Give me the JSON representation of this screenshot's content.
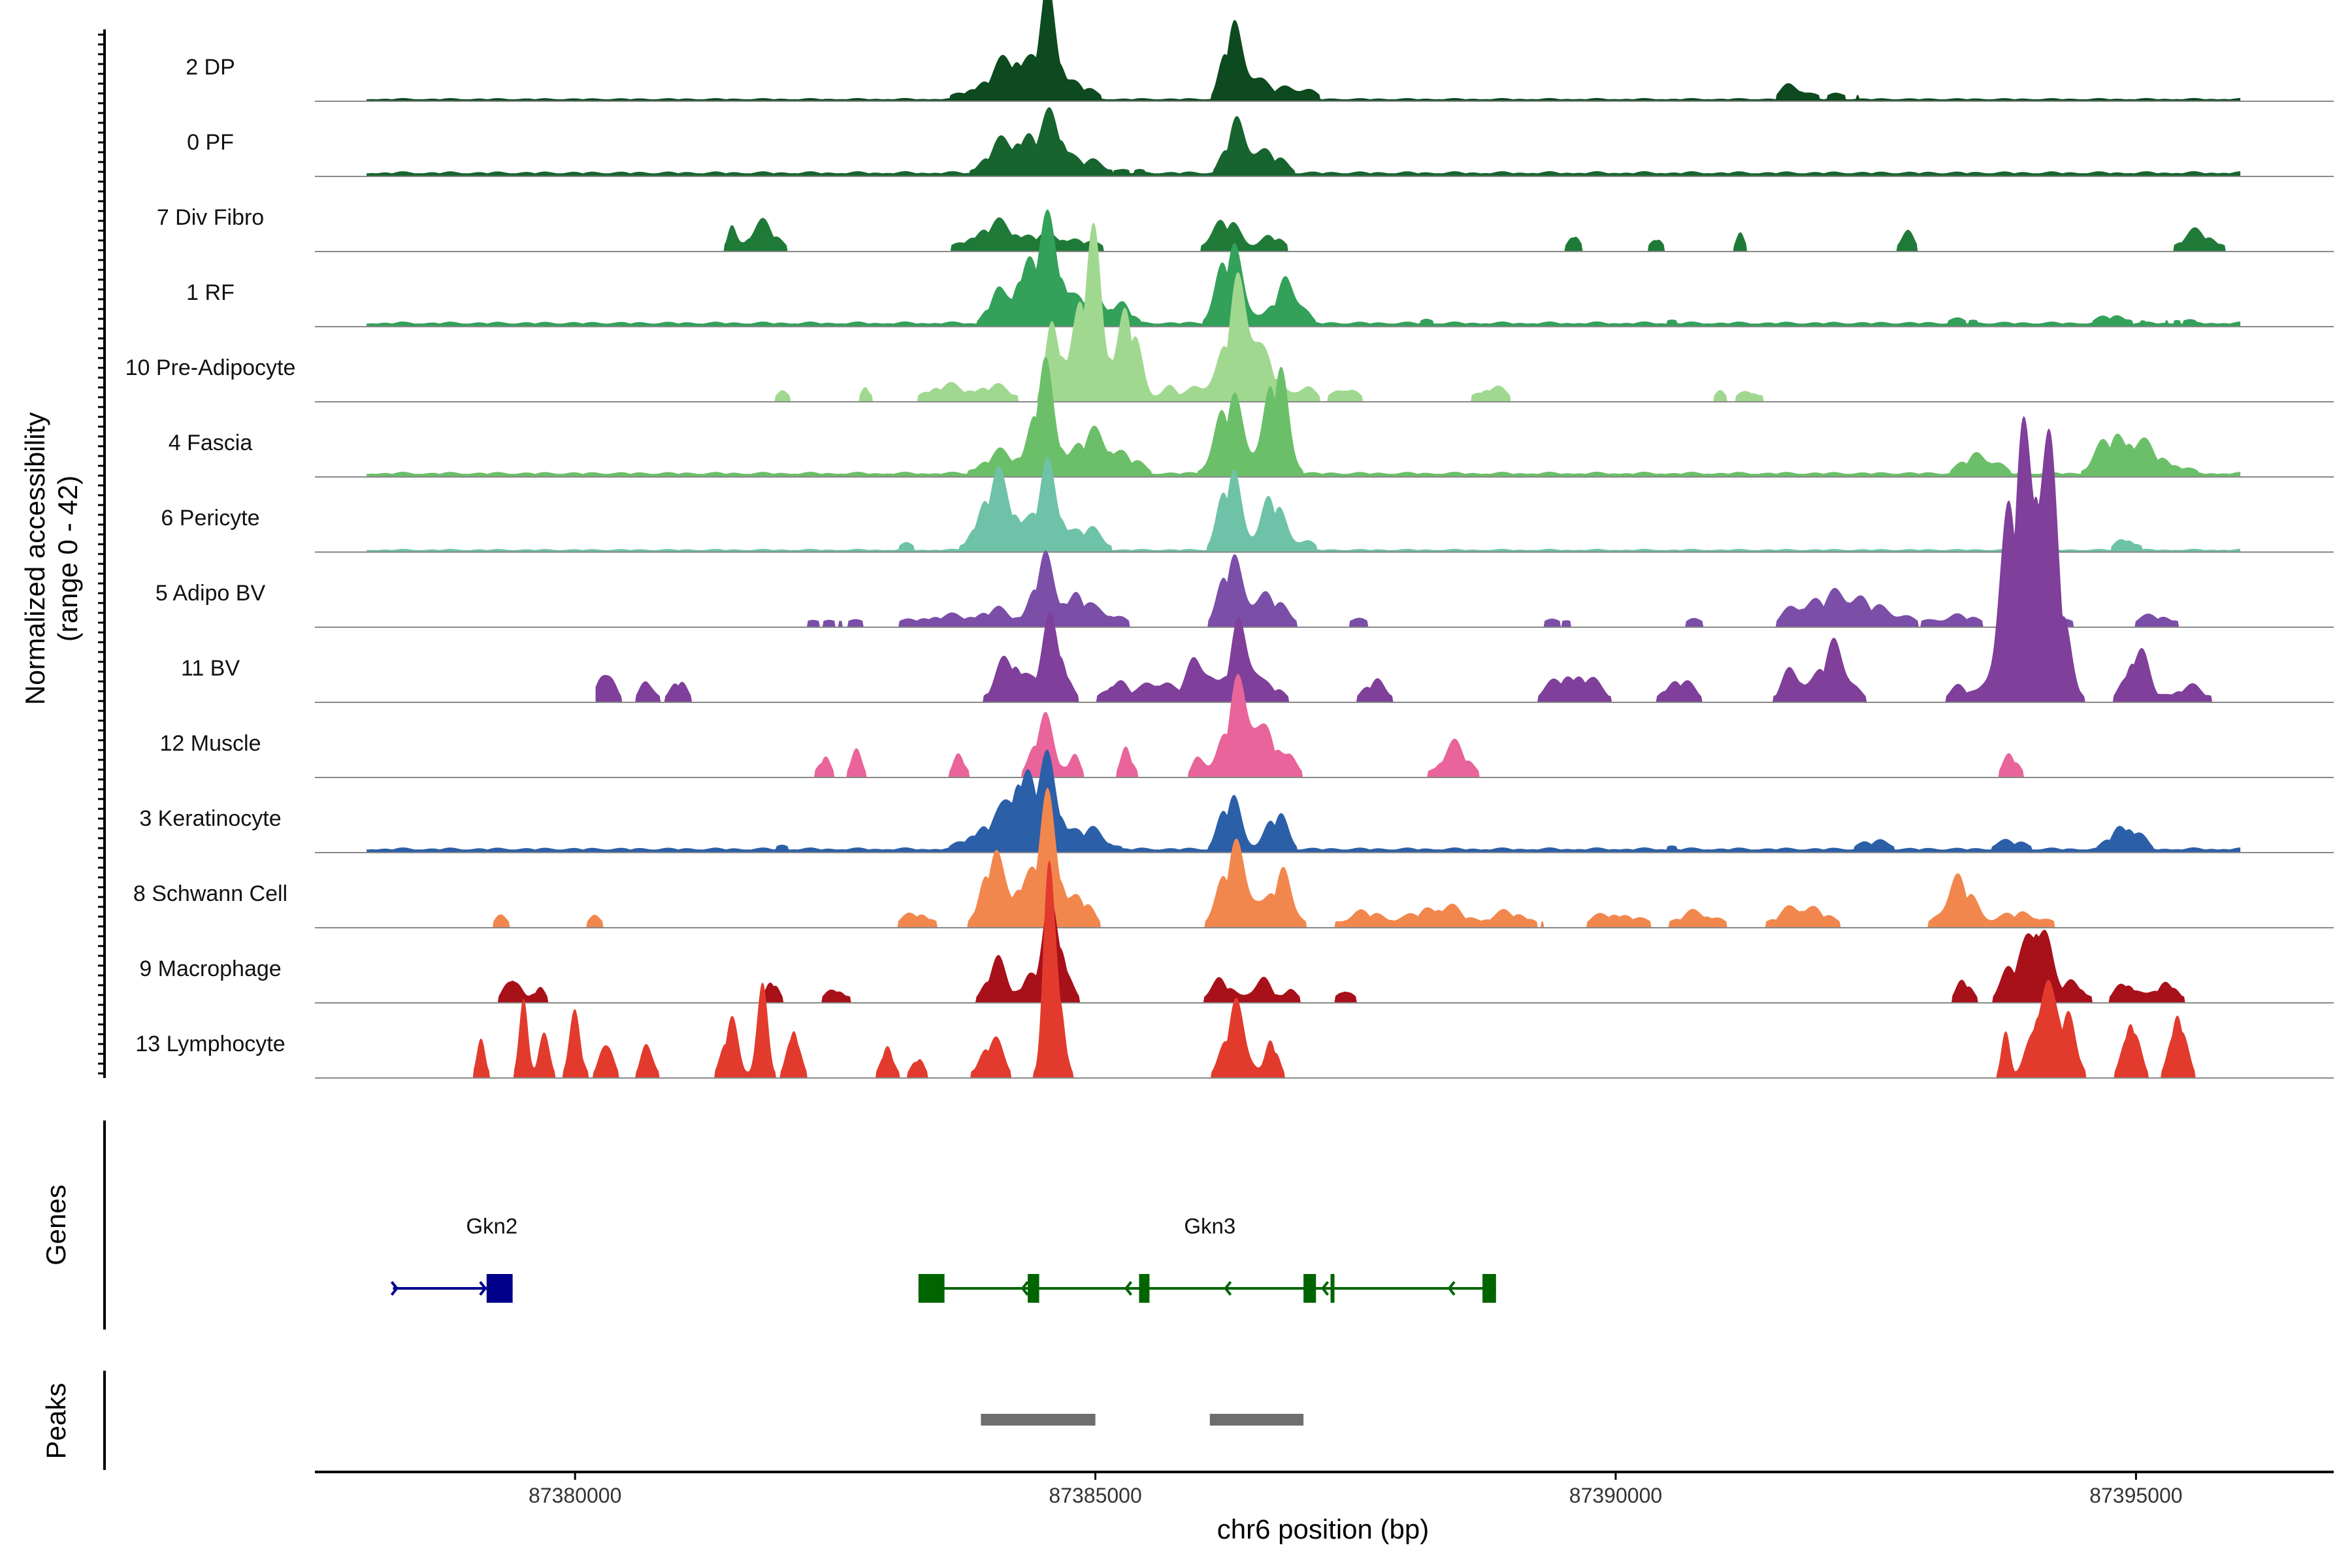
{
  "chart_data": {
    "type": "area",
    "title": "",
    "ylabel": "Normalized accessibility",
    "ylabel_range": "(range 0 - 42)",
    "xlabel": "chr6 position (bp)",
    "chromosome": "chr6",
    "xlim": [
      87377500,
      87396900
    ],
    "ylim": [
      0,
      42
    ],
    "x_ticks": [
      87380000,
      87385000,
      87390000,
      87395000
    ],
    "x_tick_labels": [
      "87380000",
      "87385000",
      "87390000",
      "87395000"
    ],
    "gene_panel_label": "Genes",
    "peak_panel_label": "Peaks",
    "tracks": [
      {
        "name": "2 DP",
        "color": "#0d4a1f",
        "base": 0.3,
        "xmin": 87378000,
        "xmax": 87396000,
        "peaks": [
          [
            87384050,
            350,
            3
          ],
          [
            87384280,
            200,
            4
          ],
          [
            87384550,
            120,
            9
          ],
          [
            87384700,
            300,
            3
          ],
          [
            87386300,
            120,
            7
          ],
          [
            87386450,
            200,
            4
          ],
          [
            87386900,
            250,
            1.5
          ],
          [
            87391700,
            200,
            2
          ],
          [
            87392200,
            250,
            1
          ],
          [
            87387000,
            400,
            0.4
          ],
          [
            87382900,
            150,
            0.6
          ]
        ]
      },
      {
        "name": "0 PF",
        "color": "#17642e",
        "base": 0.5,
        "xmin": 87378000,
        "xmax": 87396000,
        "peaks": [
          [
            87384100,
            250,
            4
          ],
          [
            87384350,
            150,
            4
          ],
          [
            87384600,
            150,
            6.5
          ],
          [
            87384900,
            300,
            2
          ],
          [
            87386350,
            150,
            6
          ],
          [
            87386650,
            250,
            3
          ],
          [
            87385400,
            200,
            0.7
          ],
          [
            87388700,
            200,
            0.6
          ],
          [
            87381600,
            200,
            0.5
          ]
        ]
      },
      {
        "name": "7 Div Fibro",
        "color": "#1f7a38",
        "base": 0,
        "xmin": 87378000,
        "xmax": 87396000,
        "peaks": [
          [
            87381500,
            60,
            3
          ],
          [
            87381800,
            200,
            3.5
          ],
          [
            87384000,
            300,
            3
          ],
          [
            87384600,
            500,
            2
          ],
          [
            87386250,
            200,
            4
          ],
          [
            87386700,
            150,
            2
          ],
          [
            87389600,
            80,
            2.5
          ],
          [
            87390400,
            80,
            2
          ],
          [
            87391200,
            60,
            2
          ],
          [
            87392800,
            100,
            2.5
          ],
          [
            87395600,
            250,
            2.5
          ]
        ]
      },
      {
        "name": "1 RF",
        "color": "#33a15a",
        "base": 0.5,
        "xmin": 87378000,
        "xmax": 87396000,
        "peaks": [
          [
            87384050,
            150,
            4
          ],
          [
            87384300,
            120,
            6
          ],
          [
            87384550,
            200,
            12
          ],
          [
            87384950,
            180,
            4
          ],
          [
            87385250,
            150,
            3
          ],
          [
            87386300,
            180,
            10
          ],
          [
            87386850,
            180,
            6
          ],
          [
            87388200,
            200,
            1
          ],
          [
            87390500,
            200,
            1
          ],
          [
            87393300,
            300,
            1
          ],
          [
            87394800,
            250,
            1.5
          ],
          [
            87395400,
            250,
            1
          ]
        ]
      },
      {
        "name": "10 Pre-Adipocyte",
        "color": "#a0d890",
        "base": 0,
        "xmin": 87381800,
        "xmax": 87392700,
        "peaks": [
          [
            87382000,
            100,
            1.5
          ],
          [
            87382800,
            60,
            2
          ],
          [
            87383500,
            250,
            2
          ],
          [
            87384000,
            300,
            2
          ],
          [
            87384600,
            100,
            9
          ],
          [
            87384850,
            150,
            11
          ],
          [
            87385000,
            120,
            14
          ],
          [
            87385300,
            150,
            12
          ],
          [
            87385700,
            120,
            2
          ],
          [
            87386000,
            150,
            2
          ],
          [
            87386400,
            200,
            15
          ],
          [
            87386700,
            120,
            3
          ],
          [
            87387000,
            150,
            2
          ],
          [
            87387400,
            150,
            2
          ],
          [
            87388800,
            200,
            2
          ],
          [
            87391000,
            80,
            1.5
          ],
          [
            87391300,
            150,
            1.5
          ]
        ]
      },
      {
        "name": "4 Fascia",
        "color": "#6bbf68",
        "base": 0.5,
        "xmin": 87378000,
        "xmax": 87396000,
        "peaks": [
          [
            87384100,
            300,
            3
          ],
          [
            87384500,
            150,
            12
          ],
          [
            87384900,
            250,
            4
          ],
          [
            87385200,
            300,
            3
          ],
          [
            87386300,
            200,
            10
          ],
          [
            87386750,
            150,
            14
          ],
          [
            87393500,
            250,
            3
          ],
          [
            87394800,
            250,
            4
          ],
          [
            87395100,
            400,
            3
          ]
        ]
      },
      {
        "name": "6 Pericyte",
        "color": "#6ec2a7",
        "base": 0.3,
        "xmin": 87378000,
        "xmax": 87396000,
        "peaks": [
          [
            87384000,
            200,
            8
          ],
          [
            87384250,
            200,
            4
          ],
          [
            87384550,
            150,
            9
          ],
          [
            87384900,
            250,
            3
          ],
          [
            87386300,
            150,
            10
          ],
          [
            87386700,
            150,
            7
          ],
          [
            87387000,
            150,
            1.5
          ],
          [
            87394900,
            150,
            2
          ],
          [
            87383200,
            150,
            1
          ]
        ]
      },
      {
        "name": "5 Adipo BV",
        "color": "#7b4ea8",
        "base": 0,
        "xmin": 87378000,
        "xmax": 87396000,
        "peaks": [
          [
            87382500,
            400,
            1
          ],
          [
            87383500,
            400,
            1.5
          ],
          [
            87384050,
            250,
            2
          ],
          [
            87384500,
            150,
            8
          ],
          [
            87384800,
            150,
            4
          ],
          [
            87385100,
            250,
            2
          ],
          [
            87386300,
            150,
            8
          ],
          [
            87386650,
            250,
            4
          ],
          [
            87387500,
            300,
            1
          ],
          [
            87389500,
            300,
            1
          ],
          [
            87390800,
            200,
            1
          ],
          [
            87391800,
            250,
            3
          ],
          [
            87392200,
            250,
            4
          ],
          [
            87392600,
            300,
            2
          ],
          [
            87393300,
            300,
            1.5
          ],
          [
            87394100,
            300,
            2
          ],
          [
            87395200,
            300,
            1.5
          ]
        ]
      },
      {
        "name": "11 BV",
        "color": "#7f3f9a",
        "base": 0,
        "xmin": 87380200,
        "xmax": 87396000,
        "peaks": [
          [
            87380300,
            100,
            5
          ],
          [
            87380700,
            100,
            3
          ],
          [
            87381000,
            100,
            3
          ],
          [
            87384200,
            200,
            6
          ],
          [
            87384600,
            150,
            10
          ],
          [
            87385200,
            150,
            3
          ],
          [
            87385600,
            200,
            3
          ],
          [
            87386000,
            150,
            6
          ],
          [
            87386400,
            150,
            10
          ],
          [
            87386700,
            150,
            2
          ],
          [
            87387700,
            150,
            3
          ],
          [
            87389600,
            300,
            4
          ],
          [
            87390600,
            200,
            3
          ],
          [
            87391700,
            150,
            4
          ],
          [
            87392100,
            200,
            7
          ],
          [
            87393300,
            150,
            2
          ],
          [
            87393800,
            200,
            14
          ],
          [
            87394000,
            220,
            28
          ],
          [
            87394200,
            180,
            14
          ],
          [
            87395000,
            150,
            7
          ],
          [
            87395500,
            250,
            2
          ]
        ]
      },
      {
        "name": "12 Muscle",
        "color": "#e8649a",
        "base": 0,
        "xmin": 87382300,
        "xmax": 87394300,
        "peaks": [
          [
            87382400,
            80,
            3
          ],
          [
            87382700,
            80,
            3
          ],
          [
            87383700,
            80,
            3
          ],
          [
            87384500,
            150,
            7
          ],
          [
            87384800,
            80,
            3
          ],
          [
            87385300,
            80,
            4
          ],
          [
            87386000,
            80,
            3
          ],
          [
            87386400,
            200,
            12
          ],
          [
            87386700,
            120,
            4
          ],
          [
            87386900,
            80,
            3
          ],
          [
            87388450,
            200,
            4
          ],
          [
            87393800,
            100,
            3
          ]
        ]
      },
      {
        "name": "3 Keratinocyte",
        "color": "#2b5fa8",
        "base": 0.5,
        "xmin": 87378000,
        "xmax": 87396000,
        "peaks": [
          [
            87384000,
            300,
            4
          ],
          [
            87384300,
            150,
            10
          ],
          [
            87384550,
            150,
            9
          ],
          [
            87384900,
            300,
            3
          ],
          [
            87386300,
            150,
            7
          ],
          [
            87386750,
            150,
            5
          ],
          [
            87390500,
            200,
            1
          ],
          [
            87392500,
            300,
            1.5
          ],
          [
            87393800,
            300,
            1.5
          ],
          [
            87394900,
            200,
            4
          ],
          [
            87382000,
            200,
            1
          ]
        ]
      },
      {
        "name": "8 Schwann Cell",
        "color": "#f2874e",
        "base": 0,
        "xmin": 87378500,
        "xmax": 87394500,
        "peaks": [
          [
            87379300,
            100,
            1.5
          ],
          [
            87380200,
            100,
            1.5
          ],
          [
            87383300,
            200,
            2
          ],
          [
            87384000,
            150,
            9
          ],
          [
            87384300,
            150,
            6
          ],
          [
            87384550,
            150,
            14
          ],
          [
            87384850,
            150,
            4
          ],
          [
            87386350,
            200,
            10
          ],
          [
            87386800,
            150,
            7
          ],
          [
            87387600,
            300,
            2
          ],
          [
            87388300,
            300,
            3
          ],
          [
            87389000,
            300,
            2
          ],
          [
            87390000,
            300,
            2
          ],
          [
            87390800,
            300,
            2
          ],
          [
            87391800,
            300,
            3
          ],
          [
            87393300,
            200,
            6
          ],
          [
            87393900,
            300,
            2
          ]
        ]
      },
      {
        "name": "9 Macrophage",
        "color": "#a8101a",
        "base": 0,
        "xmin": 87378800,
        "xmax": 87395500,
        "peaks": [
          [
            87379400,
            100,
            4
          ],
          [
            87379650,
            80,
            2
          ],
          [
            87381900,
            80,
            3
          ],
          [
            87382500,
            150,
            2
          ],
          [
            87384050,
            150,
            5
          ],
          [
            87384350,
            100,
            3
          ],
          [
            87384600,
            150,
            12
          ],
          [
            87386200,
            150,
            3
          ],
          [
            87386600,
            150,
            3
          ],
          [
            87386900,
            80,
            2
          ],
          [
            87387400,
            100,
            2
          ],
          [
            87393350,
            100,
            3
          ],
          [
            87393800,
            150,
            4
          ],
          [
            87394050,
            150,
            12
          ],
          [
            87394400,
            150,
            3
          ],
          [
            87394900,
            150,
            3
          ],
          [
            87395300,
            150,
            3
          ]
        ]
      },
      {
        "name": "13 Lymphocyte",
        "color": "#e23b2e",
        "base": 0,
        "xmin": 87378900,
        "xmax": 87395700,
        "peaks": [
          [
            87379100,
            60,
            5
          ],
          [
            87379500,
            60,
            10
          ],
          [
            87379700,
            80,
            5
          ],
          [
            87380000,
            80,
            8
          ],
          [
            87380300,
            80,
            6
          ],
          [
            87380700,
            80,
            5
          ],
          [
            87381500,
            100,
            8
          ],
          [
            87381800,
            80,
            10
          ],
          [
            87382100,
            80,
            8
          ],
          [
            87383000,
            80,
            5
          ],
          [
            87383300,
            80,
            3
          ],
          [
            87384000,
            150,
            5
          ],
          [
            87384550,
            80,
            20
          ],
          [
            87384650,
            80,
            12
          ],
          [
            87386350,
            150,
            9
          ],
          [
            87386700,
            80,
            5
          ],
          [
            87393750,
            60,
            5
          ],
          [
            87394100,
            150,
            12
          ],
          [
            87394350,
            120,
            8
          ],
          [
            87394950,
            100,
            9
          ],
          [
            87395400,
            100,
            10
          ]
        ]
      }
    ],
    "genes": [
      {
        "name": "Gkn2",
        "color": "#00008b",
        "start": 87378250,
        "end": 87379400,
        "strand": "+",
        "exons": [
          [
            87379150,
            87379400
          ]
        ],
        "label_x": 87379200
      },
      {
        "name": "Gkn3",
        "color": "#006400",
        "start": 87383300,
        "end": 87388850,
        "strand": "-",
        "exons": [
          [
            87383300,
            87383550
          ],
          [
            87384350,
            87384460
          ],
          [
            87385420,
            87385520
          ],
          [
            87387000,
            87387120
          ],
          [
            87387260,
            87387290
          ],
          [
            87388720,
            87388850
          ]
        ],
        "label_x": 87386100
      }
    ],
    "peaks_track": [
      [
        87383900,
        87385000
      ],
      [
        87386100,
        87387000
      ]
    ],
    "peak_color": "#6e6e6e"
  }
}
